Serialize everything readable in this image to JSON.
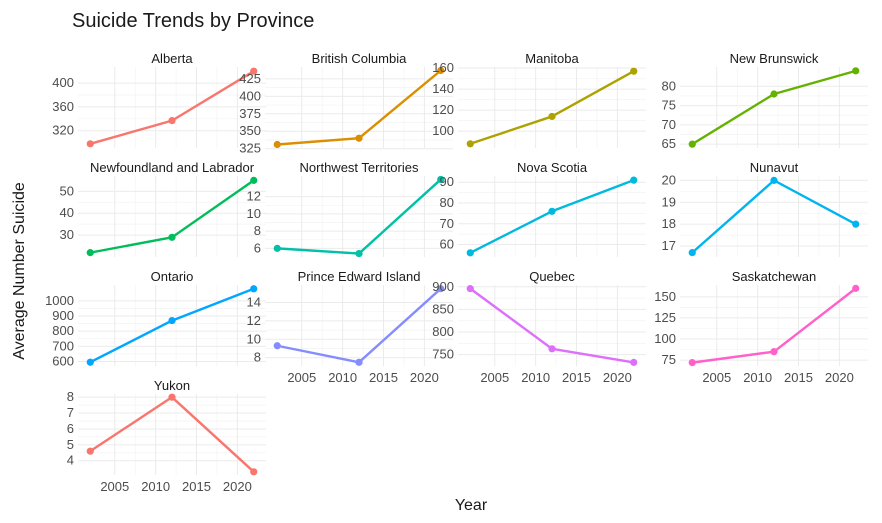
{
  "chart_data": {
    "type": "line",
    "title": "Suicide Trends by Province",
    "xlabel": "Year",
    "ylabel": "Average Number Suicide",
    "x": [
      2002,
      2012,
      2022
    ],
    "x_ticks": [
      2005,
      2010,
      2015,
      2020
    ],
    "xlim": [
      2000.5,
      2023.5
    ],
    "grid": true,
    "legend": "none",
    "series": [
      {
        "name": "Alberta",
        "color": "#F8766D",
        "values": [
          298,
          337,
          420
        ],
        "ylim": [
          291,
          427
        ],
        "yticks": [
          320,
          360,
          400
        ]
      },
      {
        "name": "British Columbia",
        "color": "#DB8E00",
        "values": [
          331,
          340,
          437
        ],
        "ylim": [
          326,
          442
        ],
        "yticks": [
          325,
          350,
          375,
          400,
          425
        ]
      },
      {
        "name": "Manitoba",
        "color": "#AEA200",
        "values": [
          88,
          114,
          157
        ],
        "ylim": [
          84,
          161
        ],
        "yticks": [
          100,
          120,
          140,
          160
        ]
      },
      {
        "name": "New Brunswick",
        "color": "#64B200",
        "values": [
          65,
          78,
          84
        ],
        "ylim": [
          64,
          85
        ],
        "yticks": [
          65,
          70,
          75,
          80
        ]
      },
      {
        "name": "Newfoundland and Labrador",
        "color": "#00BD5C",
        "values": [
          22,
          29,
          55
        ],
        "ylim": [
          20,
          57
        ],
        "yticks": [
          30,
          40,
          50
        ]
      },
      {
        "name": "Northwest Territories",
        "color": "#00C1A7",
        "values": [
          6,
          5.4,
          14
        ],
        "ylim": [
          5,
          14.4
        ],
        "yticks": [
          6,
          8,
          10,
          12
        ]
      },
      {
        "name": "Nova Scotia",
        "color": "#00BADE",
        "values": [
          56,
          76,
          91
        ],
        "ylim": [
          54,
          93
        ],
        "yticks": [
          60,
          70,
          80,
          90
        ]
      },
      {
        "name": "Nunavut",
        "color": "#00B4EF",
        "values": [
          16.7,
          20,
          18
        ],
        "ylim": [
          16.5,
          20.2
        ],
        "yticks": [
          17,
          18,
          19,
          20
        ]
      },
      {
        "name": "Ontario",
        "color": "#00A6FF",
        "values": [
          595,
          870,
          1080
        ],
        "ylim": [
          570,
          1105
        ],
        "yticks": [
          600,
          700,
          800,
          900,
          1000
        ]
      },
      {
        "name": "Prince Edward Island",
        "color": "#848CFF",
        "values": [
          9.3,
          7.5,
          15.5
        ],
        "ylim": [
          7.1,
          15.9
        ],
        "yticks": [
          8,
          10,
          12,
          14
        ]
      },
      {
        "name": "Quebec",
        "color": "#DD6FFA",
        "values": [
          896,
          763,
          733
        ],
        "ylim": [
          725,
          904
        ],
        "yticks": [
          750,
          800,
          850,
          900
        ]
      },
      {
        "name": "Saskatchewan",
        "color": "#FF61C9",
        "values": [
          72,
          85,
          160
        ],
        "ylim": [
          68,
          164
        ],
        "yticks": [
          75,
          100,
          125,
          150
        ]
      },
      {
        "name": "Yukon",
        "color": "#F8766D",
        "values": [
          4.6,
          8.0,
          3.3
        ],
        "ylim": [
          3.1,
          8.2
        ],
        "yticks": [
          4,
          5,
          6,
          7,
          8
        ]
      }
    ]
  }
}
